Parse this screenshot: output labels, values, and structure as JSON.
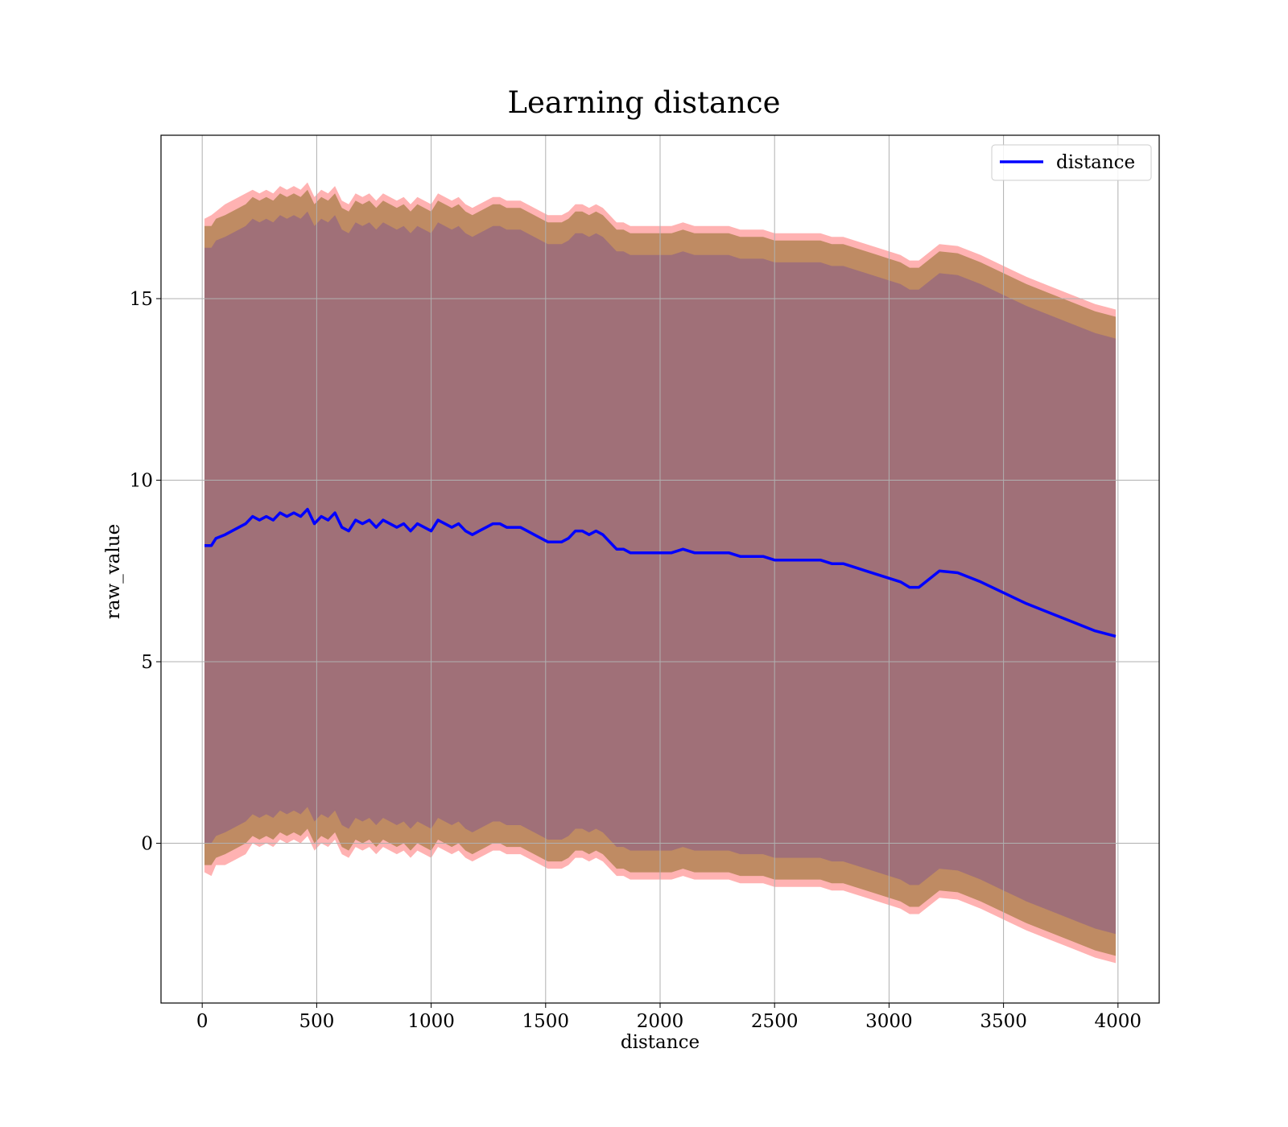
{
  "chart_data": {
    "type": "line",
    "title": "Learning distance",
    "xlabel": "distance",
    "ylabel": "raw_value",
    "xlim": [
      -180,
      4180
    ],
    "ylim": [
      -4.4,
      19.5
    ],
    "xticks": [
      0,
      500,
      1000,
      1500,
      2000,
      2500,
      3000,
      3500,
      4000
    ],
    "yticks": [
      0,
      5,
      10,
      15
    ],
    "grid": true,
    "legend": {
      "position": "top-right",
      "entries": [
        "distance"
      ]
    },
    "colors": {
      "line": "#0000ff",
      "outer_band": "#ff7f7f",
      "middle_band": "#b8865a",
      "inner_band": "#a07078",
      "grid": "#b0b0b0"
    },
    "series": [
      {
        "name": "distance",
        "x": [
          10,
          40,
          60,
          100,
          130,
          160,
          190,
          220,
          250,
          280,
          310,
          340,
          370,
          400,
          430,
          460,
          490,
          520,
          550,
          580,
          610,
          640,
          670,
          700,
          730,
          760,
          790,
          820,
          850,
          880,
          910,
          940,
          970,
          1000,
          1030,
          1060,
          1090,
          1120,
          1150,
          1180,
          1210,
          1240,
          1270,
          1300,
          1330,
          1360,
          1390,
          1420,
          1450,
          1480,
          1510,
          1540,
          1570,
          1600,
          1630,
          1660,
          1690,
          1720,
          1750,
          1780,
          1810,
          1840,
          1870,
          1900,
          1930,
          1960,
          2000,
          2050,
          2100,
          2150,
          2200,
          2250,
          2300,
          2350,
          2400,
          2450,
          2500,
          2550,
          2600,
          2650,
          2700,
          2750,
          2800,
          2850,
          2900,
          2950,
          3000,
          3050,
          3090,
          3130,
          3220,
          3300,
          3400,
          3500,
          3600,
          3700,
          3800,
          3900,
          3990
        ],
        "values": [
          8.2,
          8.2,
          8.4,
          8.5,
          8.6,
          8.7,
          8.8,
          9.0,
          8.9,
          9.0,
          8.9,
          9.1,
          9.0,
          9.1,
          9.0,
          9.2,
          8.8,
          9.0,
          8.9,
          9.1,
          8.7,
          8.6,
          8.9,
          8.8,
          8.9,
          8.7,
          8.9,
          8.8,
          8.7,
          8.8,
          8.6,
          8.8,
          8.7,
          8.6,
          8.9,
          8.8,
          8.7,
          8.8,
          8.6,
          8.5,
          8.6,
          8.7,
          8.8,
          8.8,
          8.7,
          8.7,
          8.7,
          8.6,
          8.5,
          8.4,
          8.3,
          8.3,
          8.3,
          8.4,
          8.6,
          8.6,
          8.5,
          8.6,
          8.5,
          8.3,
          8.1,
          8.1,
          8.0,
          8.0,
          8.0,
          8.0,
          8.0,
          8.0,
          8.1,
          8.0,
          8.0,
          8.0,
          8.0,
          7.9,
          7.9,
          7.9,
          7.8,
          7.8,
          7.8,
          7.8,
          7.8,
          7.7,
          7.7,
          7.6,
          7.5,
          7.4,
          7.3,
          7.2,
          7.05,
          7.05,
          7.5,
          7.45,
          7.2,
          6.9,
          6.6,
          6.35,
          6.1,
          5.85,
          5.7
        ],
        "bands": {
          "outer_upper": [
            17.2,
            17.3,
            17.4,
            17.6,
            17.7,
            17.8,
            17.9,
            18.0,
            17.9,
            18.0,
            17.9,
            18.1,
            18.0,
            18.1,
            18.0,
            18.2,
            17.8,
            18.0,
            17.9,
            18.1,
            17.7,
            17.6,
            17.9,
            17.8,
            17.9,
            17.7,
            17.9,
            17.8,
            17.7,
            17.8,
            17.6,
            17.8,
            17.7,
            17.6,
            17.9,
            17.8,
            17.7,
            17.8,
            17.6,
            17.5,
            17.6,
            17.7,
            17.8,
            17.8,
            17.7,
            17.7,
            17.7,
            17.6,
            17.5,
            17.4,
            17.3,
            17.3,
            17.3,
            17.4,
            17.6,
            17.6,
            17.5,
            17.6,
            17.5,
            17.3,
            17.1,
            17.1,
            17.0,
            17.0,
            17.0,
            17.0,
            17.0,
            17.0,
            17.1,
            17.0,
            17.0,
            17.0,
            17.0,
            16.9,
            16.9,
            16.9,
            16.8,
            16.8,
            16.8,
            16.8,
            16.8,
            16.7,
            16.7,
            16.6,
            16.5,
            16.4,
            16.3,
            16.2,
            16.05,
            16.05,
            16.5,
            16.45,
            16.2,
            15.9,
            15.6,
            15.35,
            15.1,
            14.85,
            14.7
          ],
          "outer_lower": [
            -0.8,
            -0.9,
            -0.6,
            -0.6,
            -0.5,
            -0.4,
            -0.3,
            0.0,
            -0.1,
            0.0,
            -0.1,
            0.1,
            0.0,
            0.1,
            0.0,
            0.2,
            -0.2,
            0.0,
            -0.1,
            0.1,
            -0.3,
            -0.4,
            -0.1,
            -0.2,
            -0.1,
            -0.3,
            -0.1,
            -0.2,
            -0.3,
            -0.2,
            -0.4,
            -0.2,
            -0.3,
            -0.4,
            -0.1,
            -0.2,
            -0.3,
            -0.2,
            -0.4,
            -0.5,
            -0.4,
            -0.3,
            -0.2,
            -0.2,
            -0.3,
            -0.3,
            -0.3,
            -0.4,
            -0.5,
            -0.6,
            -0.7,
            -0.7,
            -0.7,
            -0.6,
            -0.4,
            -0.4,
            -0.5,
            -0.4,
            -0.5,
            -0.7,
            -0.9,
            -0.9,
            -1.0,
            -1.0,
            -1.0,
            -1.0,
            -1.0,
            -1.0,
            -0.9,
            -1.0,
            -1.0,
            -1.0,
            -1.0,
            -1.1,
            -1.1,
            -1.1,
            -1.2,
            -1.2,
            -1.2,
            -1.2,
            -1.2,
            -1.3,
            -1.3,
            -1.4,
            -1.5,
            -1.6,
            -1.7,
            -1.8,
            -1.95,
            -1.95,
            -1.5,
            -1.55,
            -1.8,
            -2.1,
            -2.4,
            -2.65,
            -2.9,
            -3.15,
            -3.3
          ],
          "middle_upper": [
            17.0,
            17.0,
            17.2,
            17.3,
            17.4,
            17.5,
            17.6,
            17.8,
            17.7,
            17.8,
            17.7,
            17.9,
            17.8,
            17.9,
            17.8,
            18.0,
            17.6,
            17.8,
            17.7,
            17.9,
            17.5,
            17.4,
            17.7,
            17.6,
            17.7,
            17.5,
            17.7,
            17.6,
            17.5,
            17.6,
            17.4,
            17.6,
            17.5,
            17.4,
            17.7,
            17.6,
            17.5,
            17.6,
            17.4,
            17.3,
            17.4,
            17.5,
            17.6,
            17.6,
            17.5,
            17.5,
            17.5,
            17.4,
            17.3,
            17.2,
            17.1,
            17.1,
            17.1,
            17.2,
            17.4,
            17.4,
            17.3,
            17.4,
            17.3,
            17.1,
            16.9,
            16.9,
            16.8,
            16.8,
            16.8,
            16.8,
            16.8,
            16.8,
            16.9,
            16.8,
            16.8,
            16.8,
            16.8,
            16.7,
            16.7,
            16.7,
            16.6,
            16.6,
            16.6,
            16.6,
            16.6,
            16.5,
            16.5,
            16.4,
            16.3,
            16.2,
            16.1,
            16.0,
            15.85,
            15.85,
            16.3,
            16.25,
            16.0,
            15.7,
            15.4,
            15.15,
            14.9,
            14.65,
            14.5
          ],
          "middle_lower": [
            -0.6,
            -0.6,
            -0.4,
            -0.3,
            -0.2,
            -0.1,
            0.0,
            0.2,
            0.1,
            0.2,
            0.1,
            0.3,
            0.2,
            0.3,
            0.2,
            0.4,
            0.0,
            0.2,
            0.1,
            0.3,
            -0.1,
            -0.2,
            0.1,
            0.0,
            0.1,
            -0.1,
            0.1,
            0.0,
            -0.1,
            0.0,
            -0.2,
            0.0,
            -0.1,
            -0.2,
            0.1,
            0.0,
            -0.1,
            0.0,
            -0.2,
            -0.3,
            -0.2,
            -0.1,
            0.0,
            0.0,
            -0.1,
            -0.1,
            -0.1,
            -0.2,
            -0.3,
            -0.4,
            -0.5,
            -0.5,
            -0.5,
            -0.4,
            -0.2,
            -0.2,
            -0.3,
            -0.2,
            -0.3,
            -0.5,
            -0.7,
            -0.7,
            -0.8,
            -0.8,
            -0.8,
            -0.8,
            -0.8,
            -0.8,
            -0.7,
            -0.8,
            -0.8,
            -0.8,
            -0.8,
            -0.9,
            -0.9,
            -0.9,
            -1.0,
            -1.0,
            -1.0,
            -1.0,
            -1.0,
            -1.1,
            -1.1,
            -1.2,
            -1.3,
            -1.4,
            -1.5,
            -1.6,
            -1.75,
            -1.75,
            -1.3,
            -1.35,
            -1.6,
            -1.9,
            -2.2,
            -2.45,
            -2.7,
            -2.95,
            -3.1
          ],
          "inner_upper": [
            16.4,
            16.4,
            16.6,
            16.7,
            16.8,
            16.9,
            17.0,
            17.2,
            17.1,
            17.2,
            17.1,
            17.3,
            17.2,
            17.3,
            17.2,
            17.4,
            17.0,
            17.2,
            17.1,
            17.3,
            16.9,
            16.8,
            17.1,
            17.0,
            17.1,
            16.9,
            17.1,
            17.0,
            16.9,
            17.0,
            16.8,
            17.0,
            16.9,
            16.8,
            17.1,
            17.0,
            16.9,
            17.0,
            16.8,
            16.7,
            16.8,
            16.9,
            17.0,
            17.0,
            16.9,
            16.9,
            16.9,
            16.8,
            16.7,
            16.6,
            16.5,
            16.5,
            16.5,
            16.6,
            16.8,
            16.8,
            16.7,
            16.8,
            16.7,
            16.5,
            16.3,
            16.3,
            16.2,
            16.2,
            16.2,
            16.2,
            16.2,
            16.2,
            16.3,
            16.2,
            16.2,
            16.2,
            16.2,
            16.1,
            16.1,
            16.1,
            16.0,
            16.0,
            16.0,
            16.0,
            16.0,
            15.9,
            15.9,
            15.8,
            15.7,
            15.6,
            15.5,
            15.4,
            15.25,
            15.25,
            15.7,
            15.65,
            15.4,
            15.1,
            14.8,
            14.55,
            14.3,
            14.05,
            13.9
          ],
          "inner_lower": [
            0.0,
            0.0,
            0.2,
            0.3,
            0.4,
            0.5,
            0.6,
            0.8,
            0.7,
            0.8,
            0.7,
            0.9,
            0.8,
            0.9,
            0.8,
            1.0,
            0.6,
            0.8,
            0.7,
            0.9,
            0.5,
            0.4,
            0.7,
            0.6,
            0.7,
            0.5,
            0.7,
            0.6,
            0.5,
            0.6,
            0.4,
            0.6,
            0.5,
            0.4,
            0.7,
            0.6,
            0.5,
            0.6,
            0.4,
            0.3,
            0.4,
            0.5,
            0.6,
            0.6,
            0.5,
            0.5,
            0.5,
            0.4,
            0.3,
            0.2,
            0.1,
            0.1,
            0.1,
            0.2,
            0.4,
            0.4,
            0.3,
            0.4,
            0.3,
            0.1,
            -0.1,
            -0.1,
            -0.2,
            -0.2,
            -0.2,
            -0.2,
            -0.2,
            -0.2,
            -0.1,
            -0.2,
            -0.2,
            -0.2,
            -0.2,
            -0.3,
            -0.3,
            -0.3,
            -0.4,
            -0.4,
            -0.4,
            -0.4,
            -0.4,
            -0.5,
            -0.5,
            -0.6,
            -0.7,
            -0.8,
            -0.9,
            -1.0,
            -1.15,
            -1.15,
            -0.7,
            -0.75,
            -1.0,
            -1.3,
            -1.6,
            -1.85,
            -2.1,
            -2.35,
            -2.5
          ]
        }
      }
    ]
  }
}
